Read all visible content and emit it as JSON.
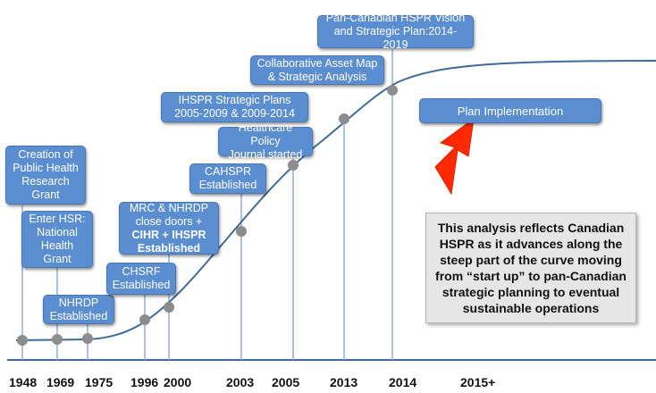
{
  "milestones": [
    {
      "year": "1948",
      "lines": [
        "Creation of",
        "Public Health",
        "Research",
        "Grant"
      ]
    },
    {
      "year": "1969",
      "lines": [
        "Enter HSR:",
        "National",
        "Health",
        "Grant"
      ]
    },
    {
      "year": "1975",
      "lines": [
        "NHRDP",
        "Established"
      ]
    },
    {
      "year": "1996",
      "lines": [
        "CHSRF",
        "Established"
      ]
    },
    {
      "year": "2000",
      "lines": [
        "MRC & NHRDP",
        "close doors +"
      ],
      "bold_lines": [
        "CIHR + IHSPR",
        "Established"
      ]
    },
    {
      "year": "2003",
      "lines": [
        "CAHSPR",
        "Established"
      ]
    },
    {
      "year": "2005",
      "lines": [
        "Healthcare Policy",
        "Journal started"
      ]
    },
    {
      "year": "2013",
      "lines": [
        "IHSPR Strategic Plans",
        "2005-2009 & 2009-2014"
      ]
    },
    {
      "year": "2013",
      "lines": [
        "Collaborative Asset Map",
        "& Strategic Analysis"
      ]
    },
    {
      "year": "2014",
      "lines": [
        "Pan-Canadian HSPR Vision",
        "and Strategic Plan:2014-2019"
      ]
    }
  ],
  "future_box": "Plan Implementation",
  "axis_years": [
    "1948",
    "1969",
    "1975",
    "1996",
    "2000",
    "2003",
    "2005",
    "2013",
    "2014",
    "2015+"
  ],
  "note": "This analysis reflects Canadian HSPR as it advances along the steep part of the curve moving from “start up” to pan-Canadian strategic planning to eventual sustainable operations",
  "colors": {
    "box_fill": "#5b8ed0",
    "box_border": "#4a78b4",
    "curve": "#3f6a99",
    "leader": "#8db0d8",
    "point": "#8c8c8c",
    "arrow": "#ff2a00",
    "note_fill": "#e6e6e6"
  }
}
